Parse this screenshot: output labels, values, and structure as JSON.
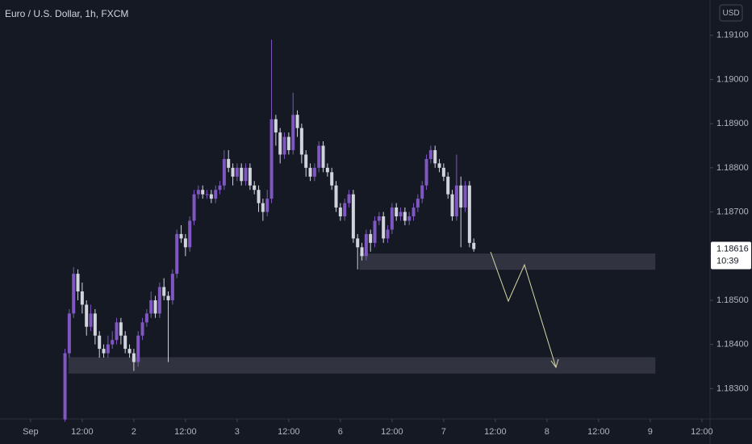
{
  "chart_data": {
    "type": "candlestick",
    "title": "Euro / U.S. Dollar, 1h, FXCM",
    "currency": "USD",
    "countdown": "10:39",
    "up_color": "#7e57c2",
    "down_color": "#d1d4dc",
    "x": [
      8,
      9,
      10,
      11,
      12,
      13,
      14,
      15,
      16,
      17,
      18,
      19,
      20,
      21,
      22,
      23,
      24,
      25,
      26,
      27,
      28,
      29,
      30,
      31,
      32,
      33,
      34,
      35,
      36,
      37,
      38,
      39,
      40,
      41,
      42,
      43,
      44,
      45,
      46,
      47,
      48,
      49,
      50,
      51,
      52,
      53,
      54,
      55,
      56,
      57,
      58,
      59,
      60,
      61,
      62,
      63,
      64,
      65,
      66,
      67,
      68,
      69,
      70,
      71,
      72,
      73,
      74,
      75,
      76,
      77,
      78,
      79,
      80,
      81,
      82,
      83,
      84,
      85,
      86,
      87,
      88,
      89,
      90,
      91,
      92,
      93,
      94,
      95,
      96,
      97,
      98,
      99,
      100,
      101,
      102,
      103
    ],
    "candles": [
      [
        1.1823,
        1.1839,
        1.18225,
        1.1838
      ],
      [
        1.1838,
        1.1848,
        1.1837,
        1.1847
      ],
      [
        1.1847,
        1.18575,
        1.1846,
        1.1856
      ],
      [
        1.1856,
        1.1857,
        1.185,
        1.1852
      ],
      [
        1.1852,
        1.1854,
        1.1847,
        1.1849
      ],
      [
        1.1849,
        1.185,
        1.1842,
        1.1844
      ],
      [
        1.1844,
        1.1849,
        1.1843,
        1.1847
      ],
      [
        1.1847,
        1.1848,
        1.184,
        1.1842
      ],
      [
        1.1842,
        1.1843,
        1.1837,
        1.1839
      ],
      [
        1.1839,
        1.184,
        1.1837,
        1.1838
      ],
      [
        1.1838,
        1.1842,
        1.1837,
        1.184
      ],
      [
        1.184,
        1.1843,
        1.1839,
        1.1841
      ],
      [
        1.1841,
        1.1846,
        1.184,
        1.1845
      ],
      [
        1.1845,
        1.1846,
        1.184,
        1.1842
      ],
      [
        1.1842,
        1.1843,
        1.1838,
        1.1839
      ],
      [
        1.1839,
        1.184,
        1.1837,
        1.1838
      ],
      [
        1.1838,
        1.1839,
        1.1834,
        1.1836
      ],
      [
        1.1836,
        1.1843,
        1.1835,
        1.1842
      ],
      [
        1.1842,
        1.1846,
        1.1841,
        1.1845
      ],
      [
        1.1845,
        1.1848,
        1.1844,
        1.1847
      ],
      [
        1.1847,
        1.1852,
        1.1846,
        1.185
      ],
      [
        1.185,
        1.1851,
        1.1846,
        1.1847
      ],
      [
        1.1847,
        1.1854,
        1.1846,
        1.1853
      ],
      [
        1.1853,
        1.1855,
        1.185,
        1.1851
      ],
      [
        1.1851,
        1.1852,
        1.1836,
        1.185
      ],
      [
        1.185,
        1.1857,
        1.1849,
        1.1856
      ],
      [
        1.1856,
        1.1866,
        1.1855,
        1.1865
      ],
      [
        1.1865,
        1.1867,
        1.1863,
        1.1864
      ],
      [
        1.1864,
        1.1865,
        1.186,
        1.1862
      ],
      [
        1.1862,
        1.1869,
        1.1861,
        1.1868
      ],
      [
        1.1868,
        1.1875,
        1.1867,
        1.1874
      ],
      [
        1.1874,
        1.1876,
        1.1873,
        1.1875
      ],
      [
        1.1875,
        1.1876,
        1.1873,
        1.1874
      ],
      [
        1.1874,
        1.1875,
        1.1873,
        1.1874
      ],
      [
        1.1874,
        1.1875,
        1.1872,
        1.1873
      ],
      [
        1.1873,
        1.1876,
        1.1872,
        1.1875
      ],
      [
        1.1875,
        1.1877,
        1.1874,
        1.1876
      ],
      [
        1.1876,
        1.1884,
        1.1875,
        1.1882
      ],
      [
        1.1882,
        1.1884,
        1.1879,
        1.188
      ],
      [
        1.188,
        1.1881,
        1.1876,
        1.1878
      ],
      [
        1.1878,
        1.1881,
        1.1877,
        1.188
      ],
      [
        1.188,
        1.1881,
        1.1876,
        1.1877
      ],
      [
        1.1877,
        1.1881,
        1.1876,
        1.188
      ],
      [
        1.188,
        1.1881,
        1.1875,
        1.1876
      ],
      [
        1.1876,
        1.1877,
        1.1874,
        1.1875
      ],
      [
        1.1875,
        1.1876,
        1.187,
        1.1872
      ],
      [
        1.1872,
        1.1873,
        1.1868,
        1.187
      ],
      [
        1.187,
        1.1875,
        1.1869,
        1.1873
      ],
      [
        1.1873,
        1.1909,
        1.1872,
        1.1891
      ],
      [
        1.1891,
        1.1892,
        1.1885,
        1.1888
      ],
      [
        1.1888,
        1.1889,
        1.1881,
        1.1883
      ],
      [
        1.1883,
        1.1888,
        1.1882,
        1.1887
      ],
      [
        1.1887,
        1.1888,
        1.1883,
        1.1884
      ],
      [
        1.1884,
        1.1897,
        1.1883,
        1.1892
      ],
      [
        1.1892,
        1.1893,
        1.1887,
        1.1889
      ],
      [
        1.1889,
        1.189,
        1.1881,
        1.1883
      ],
      [
        1.1883,
        1.1884,
        1.1878,
        1.188
      ],
      [
        1.188,
        1.1881,
        1.1877,
        1.1878
      ],
      [
        1.1878,
        1.1881,
        1.1877,
        1.188
      ],
      [
        1.188,
        1.1886,
        1.1879,
        1.1885
      ],
      [
        1.1885,
        1.1886,
        1.1879,
        1.188
      ],
      [
        1.188,
        1.1881,
        1.1878,
        1.1879
      ],
      [
        1.1879,
        1.188,
        1.1875,
        1.1876
      ],
      [
        1.1876,
        1.1877,
        1.187,
        1.1871
      ],
      [
        1.1871,
        1.1872,
        1.1868,
        1.1869
      ],
      [
        1.1869,
        1.1873,
        1.1868,
        1.1872
      ],
      [
        1.1872,
        1.1875,
        1.1871,
        1.1874
      ],
      [
        1.1874,
        1.1875,
        1.1863,
        1.1864
      ],
      [
        1.1864,
        1.1865,
        1.1857,
        1.1862
      ],
      [
        1.1862,
        1.1863,
        1.1859,
        1.186
      ],
      [
        1.186,
        1.1866,
        1.1859,
        1.1865
      ],
      [
        1.1865,
        1.1866,
        1.1861,
        1.1863
      ],
      [
        1.1863,
        1.1869,
        1.1862,
        1.1868
      ],
      [
        1.1868,
        1.187,
        1.1867,
        1.1869
      ],
      [
        1.1869,
        1.187,
        1.1863,
        1.1864
      ],
      [
        1.1864,
        1.1867,
        1.1863,
        1.1866
      ],
      [
        1.1866,
        1.1872,
        1.1865,
        1.1871
      ],
      [
        1.1871,
        1.1872,
        1.1868,
        1.1869
      ],
      [
        1.1869,
        1.1871,
        1.1868,
        1.187
      ],
      [
        1.187,
        1.1871,
        1.1867,
        1.1868
      ],
      [
        1.1868,
        1.187,
        1.1867,
        1.1869
      ],
      [
        1.1869,
        1.1872,
        1.1868,
        1.1871
      ],
      [
        1.1871,
        1.1874,
        1.187,
        1.1873
      ],
      [
        1.1873,
        1.1877,
        1.1872,
        1.1876
      ],
      [
        1.1876,
        1.1883,
        1.1875,
        1.1882
      ],
      [
        1.1882,
        1.1885,
        1.1881,
        1.1884
      ],
      [
        1.1884,
        1.1885,
        1.188,
        1.1881
      ],
      [
        1.1881,
        1.1882,
        1.1879,
        1.188
      ],
      [
        1.188,
        1.1881,
        1.1877,
        1.1878
      ],
      [
        1.1878,
        1.1879,
        1.1873,
        1.1874
      ],
      [
        1.1874,
        1.1875,
        1.1868,
        1.1869
      ],
      [
        1.1869,
        1.1883,
        1.1868,
        1.1876
      ],
      [
        1.1876,
        1.1878,
        1.1862,
        1.1871
      ],
      [
        1.1871,
        1.1877,
        1.187,
        1.1876
      ],
      [
        1.1876,
        1.1877,
        1.1862,
        1.1863
      ],
      [
        1.1863,
        1.1864,
        1.1861,
        1.18616
      ]
    ],
    "zones": [
      {
        "x": [
          76.4,
          145.2
        ],
        "y": [
          1.18569,
          1.18606
        ],
        "color": "#363a45"
      },
      {
        "x": [
          8.8,
          145.2
        ],
        "y": [
          1.18334,
          1.18371
        ],
        "color": "#363a45"
      }
    ],
    "xlim": [
      -7.1,
      157.9
    ],
    "ylim": [
      1.18233,
      1.1918
    ],
    "xticks": [
      {
        "value": 0,
        "label": "Sep"
      },
      {
        "value": 12,
        "label": "12:00"
      },
      {
        "value": 24,
        "label": "2"
      },
      {
        "value": 36,
        "label": "12:00"
      },
      {
        "value": 48,
        "label": "3"
      },
      {
        "value": 60,
        "label": "12:00"
      },
      {
        "value": 72,
        "label": "6"
      },
      {
        "value": 84,
        "label": "12:00"
      },
      {
        "value": 96,
        "label": "7"
      },
      {
        "value": 108,
        "label": "12:00"
      },
      {
        "value": 120,
        "label": "8"
      },
      {
        "value": 132,
        "label": "12:00"
      },
      {
        "value": 144,
        "label": "9"
      },
      {
        "value": 156,
        "label": "12:00"
      }
    ],
    "yticks": [
      {
        "value": 1.183,
        "label": "1.18300"
      },
      {
        "value": 1.184,
        "label": "1.18400"
      },
      {
        "value": 1.185,
        "label": "1.18500"
      },
      {
        "value": 1.186,
        "label": "1.18600"
      },
      {
        "value": 1.187,
        "label": "1.18700"
      },
      {
        "value": 1.188,
        "label": "1.18800"
      },
      {
        "value": 1.189,
        "label": "1.18900"
      },
      {
        "value": 1.19,
        "label": "1.19000"
      },
      {
        "value": 1.191,
        "label": "1.19100"
      }
    ]
  }
}
